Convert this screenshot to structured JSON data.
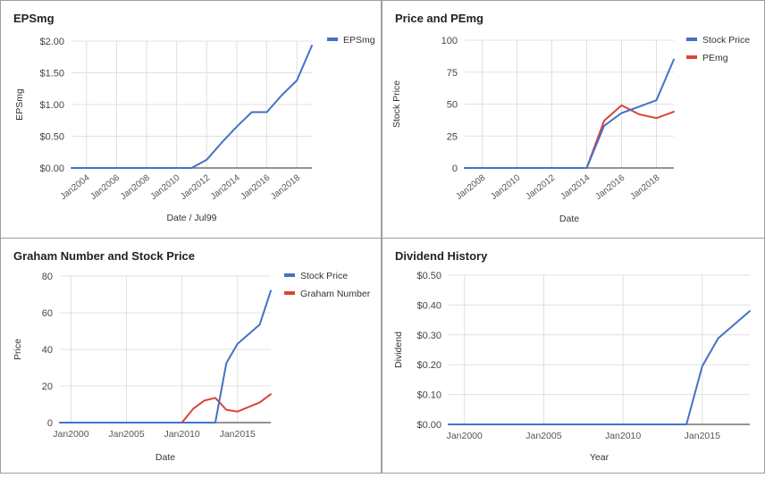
{
  "chart_data": [
    {
      "type": "line",
      "title": "EPSmg",
      "xlabel": "Date / Jul99",
      "ylabel": "EPSmg",
      "x_ticks": [
        "Jan2004",
        "Jan2006",
        "Jan2008",
        "Jan2010",
        "Jan2012",
        "Jan2014",
        "Jan2016",
        "Jan2018"
      ],
      "y_ticks": [
        "$0.00",
        "$0.50",
        "$1.00",
        "$1.50",
        "$2.00"
      ],
      "ylim": [
        0,
        2
      ],
      "grid": true,
      "legend": "right",
      "series": [
        {
          "name": "EPSmg",
          "color": "#4472c4",
          "x": [
            2003,
            2004,
            2005,
            2006,
            2007,
            2008,
            2009,
            2010,
            2011,
            2012,
            2013,
            2014,
            2015,
            2016,
            2017,
            2018,
            2019
          ],
          "y": [
            0,
            0,
            0,
            0,
            0,
            0,
            0,
            0,
            0,
            0.13,
            0.4,
            0.65,
            0.88,
            0.88,
            1.15,
            1.38,
            1.93
          ]
        }
      ]
    },
    {
      "type": "line",
      "title": "Price and PEmg",
      "xlabel": "Date",
      "ylabel": "Stock Price",
      "x_ticks": [
        "Jan2008",
        "Jan2010",
        "Jan2012",
        "Jan2014",
        "Jan2016",
        "Jan2018"
      ],
      "y_ticks": [
        "0",
        "25",
        "50",
        "75",
        "100"
      ],
      "ylim": [
        0,
        100
      ],
      "grid": true,
      "legend": "right",
      "series": [
        {
          "name": "Stock Price",
          "color": "#4472c4",
          "x": [
            2007,
            2014,
            2015,
            2016,
            2017,
            2018,
            2019
          ],
          "y": [
            0,
            0,
            33,
            43,
            48,
            53,
            85
          ]
        },
        {
          "name": "PEmg",
          "color": "#db4437",
          "x": [
            2011.6,
            2014,
            2015,
            2016,
            2017,
            2018,
            2019
          ],
          "y": [
            0,
            0,
            37,
            49,
            42,
            39,
            44
          ]
        }
      ]
    },
    {
      "type": "line",
      "title": "Graham Number and Stock Price",
      "xlabel": "Date",
      "ylabel": "Price",
      "x_ticks": [
        "Jan2000",
        "Jan2005",
        "Jan2010",
        "Jan2015"
      ],
      "y_ticks": [
        "0",
        "20",
        "40",
        "60",
        "80"
      ],
      "ylim": [
        0,
        80
      ],
      "grid": true,
      "legend": "right",
      "series": [
        {
          "name": "Stock Price",
          "color": "#4472c4",
          "x": [
            1999,
            2013,
            2014,
            2015,
            2017,
            2018
          ],
          "y": [
            0,
            0,
            32.5,
            43,
            53.5,
            72
          ]
        },
        {
          "name": "Graham Number",
          "color": "#db4437",
          "x": [
            1999,
            2010,
            2011,
            2012,
            2013,
            2014,
            2015,
            2017,
            2018
          ],
          "y": [
            0,
            0,
            7.5,
            12,
            13.5,
            7,
            6,
            11,
            15.5
          ]
        }
      ]
    },
    {
      "type": "line",
      "title": "Dividend History",
      "xlabel": "Year",
      "ylabel": "Dividend",
      "x_ticks": [
        "Jan2000",
        "Jan2005",
        "Jan2010",
        "Jan2015"
      ],
      "y_ticks": [
        "$0.00",
        "$0.10",
        "$0.20",
        "$0.30",
        "$0.40",
        "$0.50"
      ],
      "ylim": [
        0,
        0.5
      ],
      "grid": true,
      "legend": "none",
      "series": [
        {
          "color": "#4472c4",
          "x": [
            1999,
            2014,
            2015,
            2016,
            2018
          ],
          "y": [
            0,
            0,
            0.195,
            0.288,
            0.38
          ]
        }
      ]
    }
  ]
}
